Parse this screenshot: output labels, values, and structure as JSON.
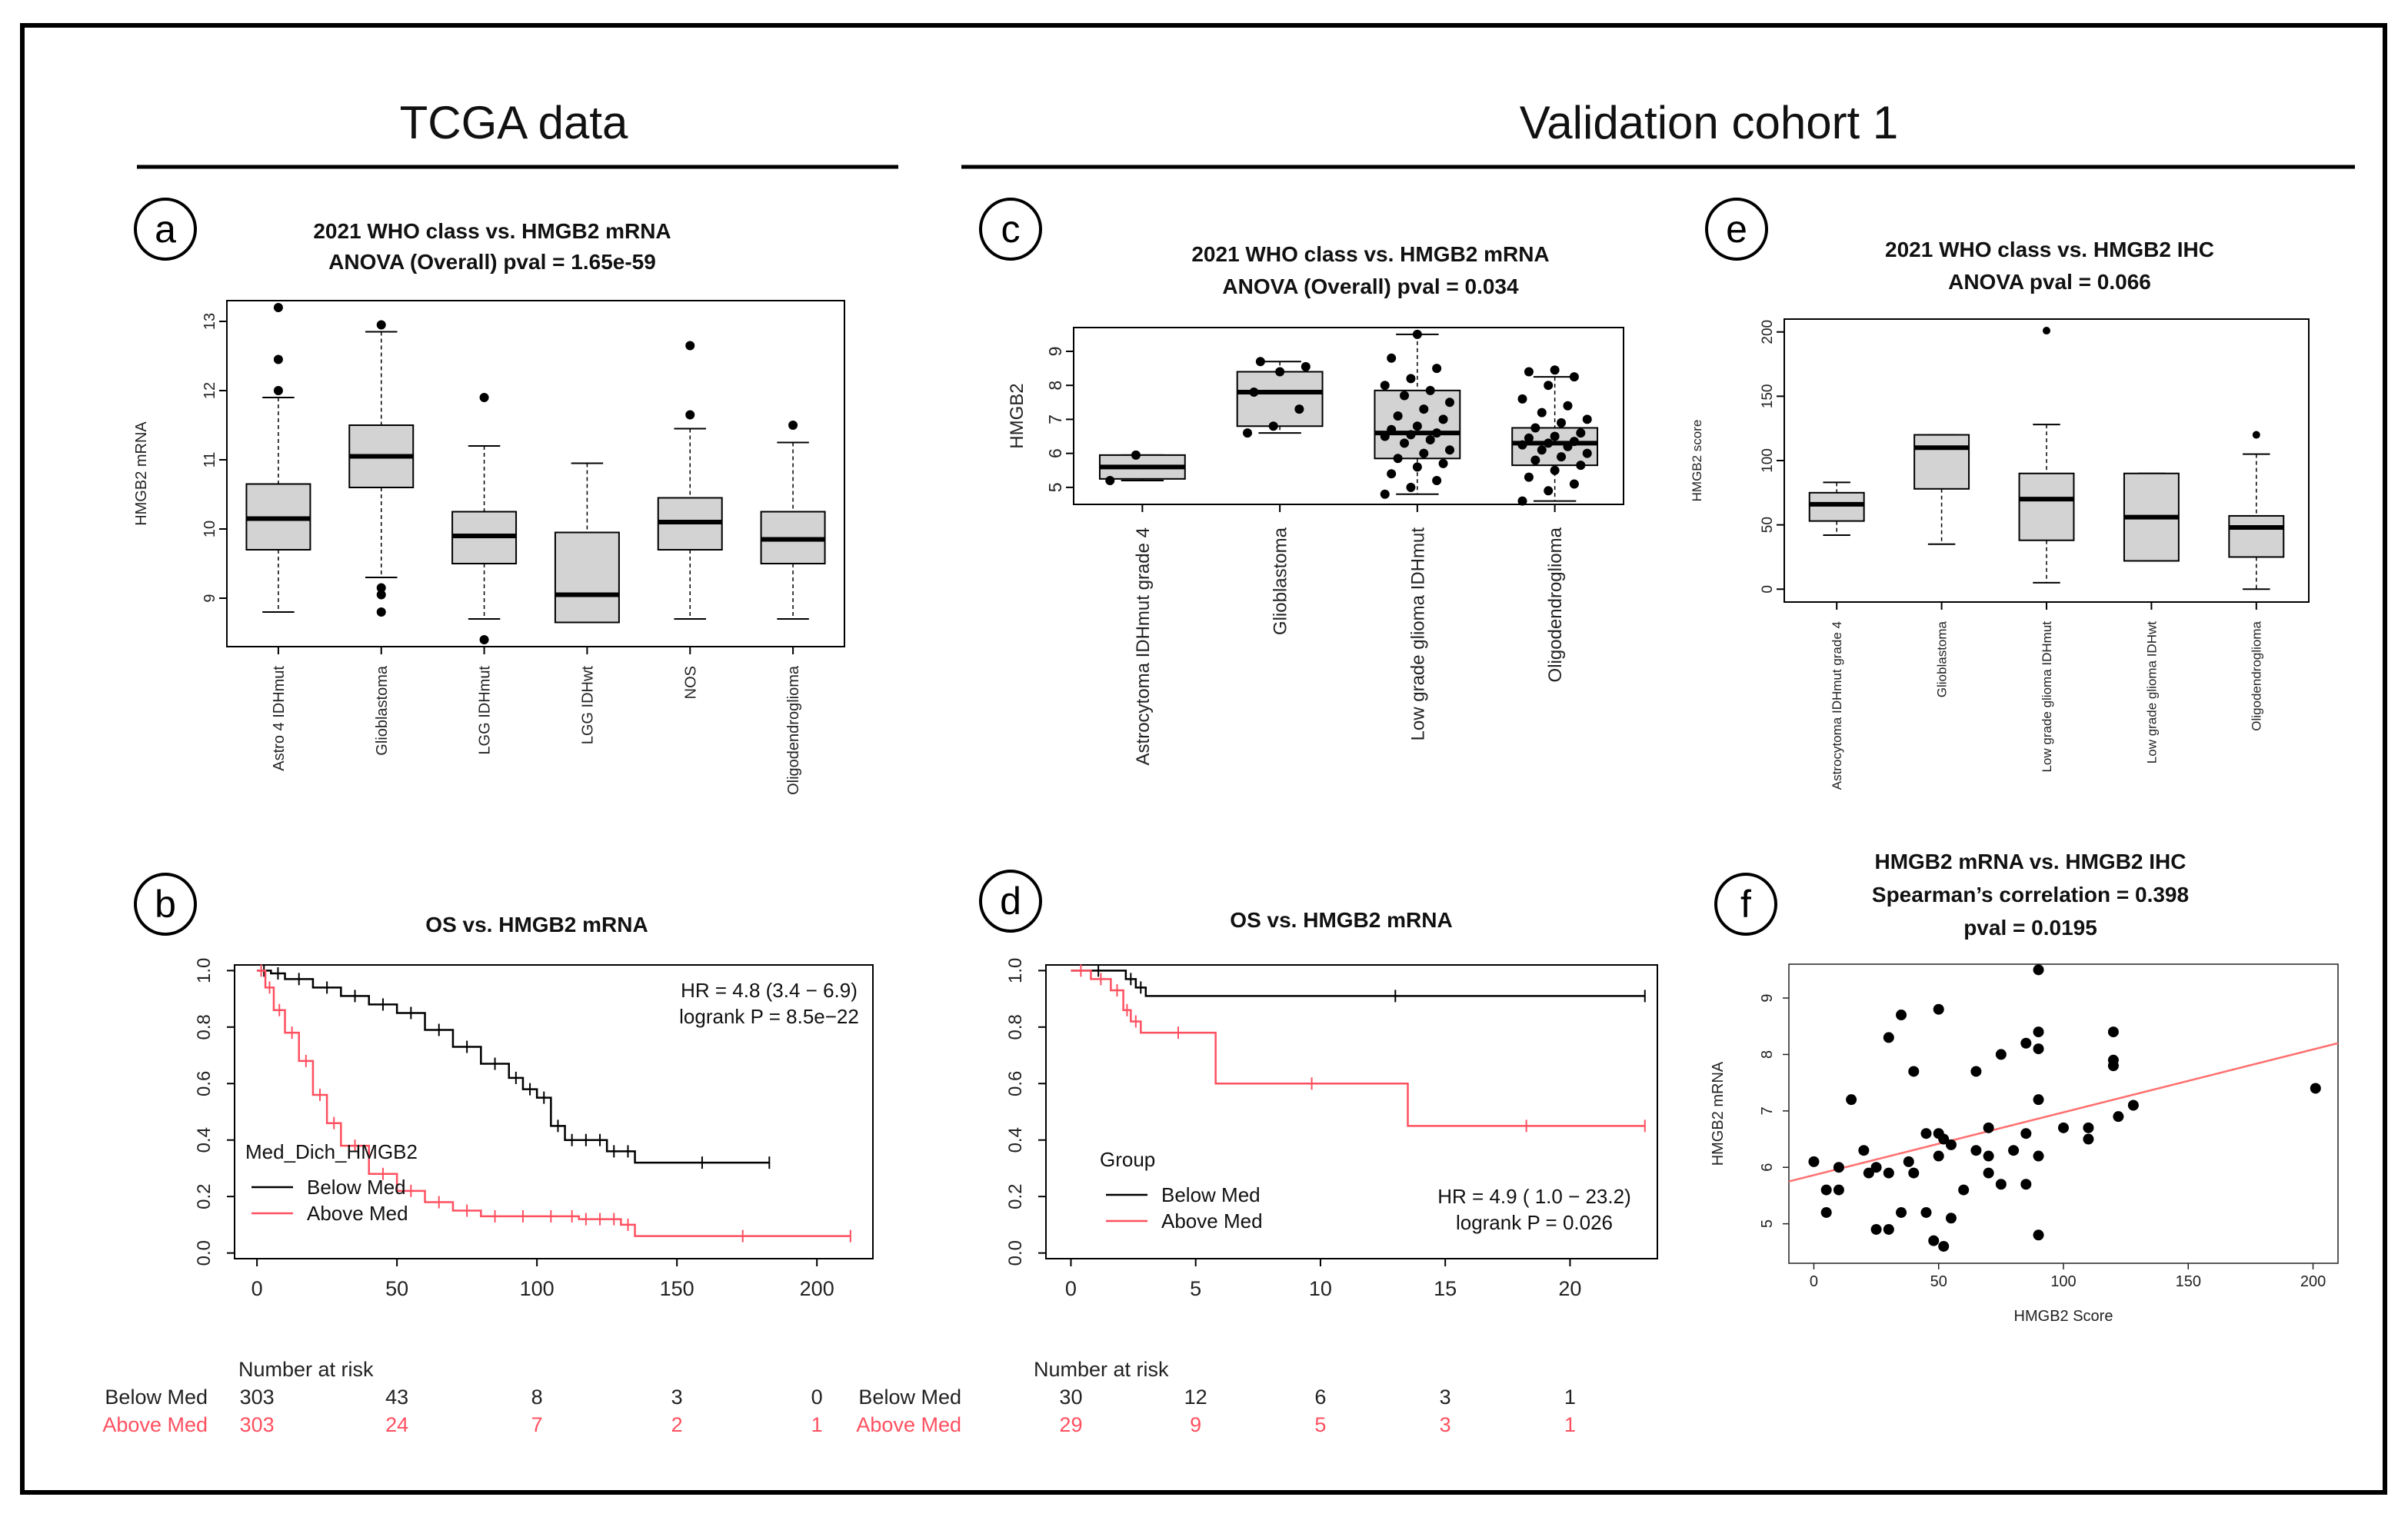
{
  "figure": {
    "headers": {
      "left": "TCGA data",
      "right": "Validation cohort 1"
    },
    "colors": {
      "below": "#000000",
      "above": "#ff5060",
      "box_fill": "#d3d3d3",
      "fit": "#ff7070"
    }
  },
  "chart_data": [
    {
      "id": "a",
      "type": "boxplot",
      "panel_label": "a",
      "title": [
        "2021 WHO class vs. HMGB2 mRNA",
        "ANOVA (Overall) pval = 1.65e-59"
      ],
      "ylabel": "HMGB2 mRNA",
      "ylim": [
        8.3,
        13.3
      ],
      "yticks": [
        9,
        10,
        11,
        12,
        13
      ],
      "categories": [
        "Astro 4 IDHmut",
        "Glioblastoma",
        "LGG IDHmut",
        "LGG IDHwt",
        "NOS",
        "Oligodendroglioma"
      ],
      "boxes": [
        {
          "min": 8.8,
          "q1": 9.7,
          "median": 10.15,
          "q3": 10.65,
          "max": 11.9,
          "outliers": [
            12.0,
            12.45,
            13.2
          ]
        },
        {
          "min": 9.3,
          "q1": 10.6,
          "median": 11.05,
          "q3": 11.5,
          "max": 12.85,
          "outliers": [
            12.95,
            9.15,
            9.05,
            8.8
          ]
        },
        {
          "min": 8.7,
          "q1": 9.5,
          "median": 9.9,
          "q3": 10.25,
          "max": 11.2,
          "outliers": [
            11.9,
            8.4
          ]
        },
        {
          "min": 8.65,
          "q1": 8.65,
          "median": 9.05,
          "q3": 9.95,
          "max": 10.95,
          "outliers": []
        },
        {
          "min": 8.7,
          "q1": 9.7,
          "median": 10.1,
          "q3": 10.45,
          "max": 11.45,
          "outliers": [
            11.65,
            12.65
          ]
        },
        {
          "min": 8.7,
          "q1": 9.5,
          "median": 9.85,
          "q3": 10.25,
          "max": 11.25,
          "outliers": [
            11.5
          ]
        }
      ]
    },
    {
      "id": "c",
      "type": "boxplot",
      "panel_label": "c",
      "title": [
        "2021 WHO class vs. HMGB2 mRNA",
        "ANOVA (Overall) pval = 0.034"
      ],
      "ylabel": "HMGB2",
      "ylim": [
        4.5,
        9.7
      ],
      "yticks": [
        5,
        6,
        7,
        8,
        9
      ],
      "categories": [
        "Astrocytoma IDHmut grade 4",
        "Glioblastoma",
        "Low grade glioma IDHmut",
        "Oligodendroglioma"
      ],
      "boxes": [
        {
          "min": 5.2,
          "q1": 5.25,
          "median": 5.6,
          "q3": 5.95,
          "max": 5.95,
          "outliers": []
        },
        {
          "min": 6.6,
          "q1": 6.8,
          "median": 7.8,
          "q3": 8.4,
          "max": 8.7,
          "outliers": []
        },
        {
          "min": 4.8,
          "q1": 5.85,
          "median": 6.6,
          "q3": 7.85,
          "max": 9.5,
          "outliers": []
        },
        {
          "min": 4.6,
          "q1": 5.65,
          "median": 6.3,
          "q3": 6.75,
          "max": 8.25,
          "outliers": []
        }
      ],
      "points": [
        [
          5.2,
          5.95
        ],
        [
          6.6,
          6.8,
          7.3,
          7.8,
          8.4,
          8.55,
          8.7
        ],
        [
          4.8,
          5.0,
          5.2,
          5.4,
          5.6,
          5.7,
          5.85,
          6.0,
          6.1,
          6.3,
          6.4,
          6.5,
          6.55,
          6.6,
          6.7,
          6.8,
          7.0,
          7.1,
          7.3,
          7.5,
          7.7,
          7.85,
          8.0,
          8.2,
          8.5,
          8.8,
          9.5
        ],
        [
          4.6,
          4.9,
          5.1,
          5.3,
          5.5,
          5.65,
          5.8,
          5.9,
          6.0,
          6.1,
          6.2,
          6.25,
          6.3,
          6.35,
          6.45,
          6.5,
          6.6,
          6.75,
          6.9,
          7.0,
          7.2,
          7.4,
          7.6,
          8.0,
          8.25,
          8.4,
          8.45
        ]
      ]
    },
    {
      "id": "e",
      "type": "boxplot",
      "panel_label": "e",
      "title": [
        "2021 WHO class vs. HMGB2 IHC",
        "ANOVA pval = 0.066"
      ],
      "ylabel": "HMGB2 score",
      "ylim": [
        -10,
        210
      ],
      "yticks": [
        0,
        50,
        100,
        150,
        200
      ],
      "categories": [
        "Astrocytoma IDHmut grade 4",
        "Glioblastoma",
        "Low grade glioma IDHmut",
        "Low grade glioma IDHwt",
        "Oligodendroglioma"
      ],
      "boxes": [
        {
          "min": 42,
          "q1": 53,
          "median": 66,
          "q3": 75,
          "max": 83,
          "outliers": []
        },
        {
          "min": 35,
          "q1": 78,
          "median": 110,
          "q3": 120,
          "max": 120,
          "outliers": []
        },
        {
          "min": 5,
          "q1": 38,
          "median": 70,
          "q3": 90,
          "max": 128,
          "outliers": [
            201
          ]
        },
        {
          "min": 22,
          "q1": 22,
          "median": 56,
          "q3": 90,
          "max": 90,
          "outliers": []
        },
        {
          "min": 0,
          "q1": 25,
          "median": 48,
          "q3": 57,
          "max": 105,
          "outliers": [
            120
          ]
        }
      ]
    },
    {
      "id": "b",
      "type": "line",
      "panel_label": "b",
      "title": [
        "OS vs. HMGB2 mRNA"
      ],
      "xlim": [
        -8,
        220
      ],
      "ylim": [
        -0.02,
        1.02
      ],
      "xticks": [
        0,
        50,
        100,
        150,
        200
      ],
      "yticks": [
        "0.0",
        "0.2",
        "0.4",
        "0.6",
        "0.8",
        "1.0"
      ],
      "stats": [
        "HR = 4.8 (3.4 − 6.9)",
        "logrank P = 8.5e−22"
      ],
      "legend_title": "Med_Dich_HMGB2",
      "series": [
        {
          "name": "Below Med",
          "color": "#000000",
          "x": [
            0,
            5,
            10,
            20,
            30,
            40,
            50,
            60,
            70,
            80,
            90,
            95,
            100,
            105,
            110,
            115,
            120,
            125,
            130,
            135,
            183
          ],
          "y": [
            1.0,
            0.99,
            0.97,
            0.94,
            0.91,
            0.88,
            0.85,
            0.79,
            0.73,
            0.67,
            0.62,
            0.58,
            0.55,
            0.45,
            0.4,
            0.4,
            0.4,
            0.36,
            0.36,
            0.32,
            0.32
          ]
        },
        {
          "name": "Above Med",
          "color": "#ff5060",
          "x": [
            0,
            3,
            6,
            10,
            15,
            20,
            25,
            30,
            40,
            50,
            60,
            70,
            80,
            90,
            100,
            110,
            115,
            120,
            125,
            130,
            135,
            212
          ],
          "y": [
            1.0,
            0.94,
            0.86,
            0.78,
            0.68,
            0.56,
            0.46,
            0.38,
            0.28,
            0.22,
            0.18,
            0.15,
            0.13,
            0.13,
            0.13,
            0.13,
            0.12,
            0.12,
            0.12,
            0.1,
            0.06,
            0.06
          ]
        }
      ],
      "risk_table": {
        "title": "Number at risk",
        "times": [
          0,
          50,
          100,
          150,
          200
        ],
        "rows": [
          {
            "label": "Below Med",
            "values": [
              "303",
              "43",
              "8",
              "3",
              "0"
            ]
          },
          {
            "label": "Above Med",
            "values": [
              "303",
              "24",
              "7",
              "2",
              "1"
            ]
          }
        ]
      }
    },
    {
      "id": "d",
      "type": "line",
      "panel_label": "d",
      "title": [
        "OS vs. HMGB2 mRNA"
      ],
      "xlim": [
        -1,
        23.5
      ],
      "ylim": [
        -0.02,
        1.02
      ],
      "xticks": [
        0,
        5,
        10,
        15,
        20
      ],
      "yticks": [
        "0.0",
        "0.2",
        "0.4",
        "0.6",
        "0.8",
        "1.0"
      ],
      "stats": [
        "HR =  4.9 ( 1.0 − 23.2)",
        "logrank P = 0.026"
      ],
      "legend_title": "Group",
      "series": [
        {
          "name": "Below Med",
          "color": "#000000",
          "x": [
            0,
            2.2,
            2.6,
            3.0,
            23
          ],
          "y": [
            1.0,
            0.97,
            0.94,
            0.91,
            0.91
          ]
        },
        {
          "name": "Above Med",
          "color": "#ff5060",
          "x": [
            0,
            0.8,
            1.6,
            2.1,
            2.4,
            2.8,
            5.8,
            13.5,
            23
          ],
          "y": [
            1.0,
            0.97,
            0.93,
            0.86,
            0.82,
            0.78,
            0.6,
            0.45,
            0.45
          ]
        }
      ],
      "risk_table": {
        "title": "Number at risk",
        "times": [
          0,
          5,
          10,
          15,
          20
        ],
        "rows": [
          {
            "label": "Below Med",
            "values": [
              "30",
              "12",
              "6",
              "3",
              "1"
            ]
          },
          {
            "label": "Above Med",
            "values": [
              "29",
              "9",
              "5",
              "3",
              "1"
            ]
          }
        ]
      }
    },
    {
      "id": "f",
      "type": "scatter",
      "panel_label": "f",
      "title": [
        "HMGB2 mRNA vs. HMGB2 IHC",
        "Spearman’s correlation = 0.398",
        "pval = 0.0195"
      ],
      "xlabel": "HMGB2 Score",
      "ylabel": "HMGB2 mRNA",
      "xlim": [
        -10,
        210
      ],
      "ylim": [
        4.3,
        9.6
      ],
      "xticks": [
        0,
        50,
        100,
        150,
        200
      ],
      "yticks": [
        5,
        6,
        7,
        8,
        9
      ],
      "fit": {
        "x": [
          -10,
          210
        ],
        "y": [
          5.75,
          8.2
        ]
      },
      "points": [
        [
          0,
          6.1
        ],
        [
          5,
          5.2
        ],
        [
          5,
          5.6
        ],
        [
          10,
          5.6
        ],
        [
          15,
          7.2
        ],
        [
          10,
          6.0
        ],
        [
          20,
          6.3
        ],
        [
          22,
          5.9
        ],
        [
          25,
          6.0
        ],
        [
          25,
          4.9
        ],
        [
          30,
          8.3
        ],
        [
          30,
          5.9
        ],
        [
          30,
          4.9
        ],
        [
          35,
          8.7
        ],
        [
          35,
          5.2
        ],
        [
          38,
          6.1
        ],
        [
          40,
          5.9
        ],
        [
          40,
          7.7
        ],
        [
          45,
          6.6
        ],
        [
          45,
          5.2
        ],
        [
          48,
          4.7
        ],
        [
          50,
          8.8
        ],
        [
          50,
          6.6
        ],
        [
          50,
          6.2
        ],
        [
          52,
          4.6
        ],
        [
          52,
          6.5
        ],
        [
          55,
          5.1
        ],
        [
          55,
          6.4
        ],
        [
          60,
          5.6
        ],
        [
          65,
          6.3
        ],
        [
          65,
          7.7
        ],
        [
          70,
          5.9
        ],
        [
          70,
          6.2
        ],
        [
          70,
          6.7
        ],
        [
          75,
          8.0
        ],
        [
          75,
          5.7
        ],
        [
          80,
          6.3
        ],
        [
          85,
          8.2
        ],
        [
          85,
          6.6
        ],
        [
          85,
          5.7
        ],
        [
          90,
          9.5
        ],
        [
          90,
          8.4
        ],
        [
          90,
          8.1
        ],
        [
          90,
          7.2
        ],
        [
          90,
          6.2
        ],
        [
          90,
          4.8
        ],
        [
          100,
          6.7
        ],
        [
          110,
          6.7
        ],
        [
          110,
          6.5
        ],
        [
          120,
          8.4
        ],
        [
          120,
          7.9
        ],
        [
          120,
          7.8
        ],
        [
          122,
          6.9
        ],
        [
          128,
          7.1
        ],
        [
          201,
          7.4
        ]
      ]
    }
  ]
}
